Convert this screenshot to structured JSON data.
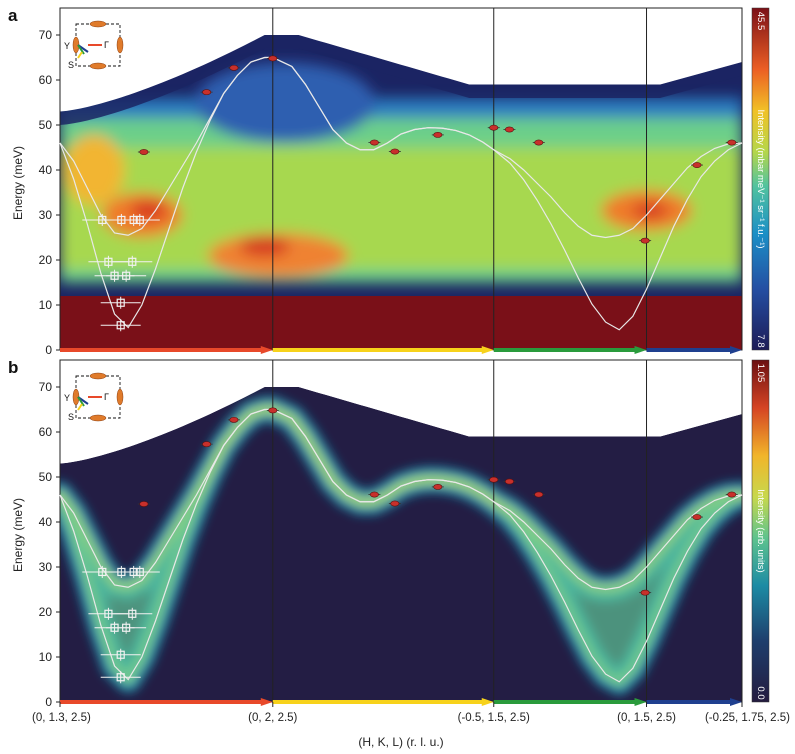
{
  "figure": {
    "xlabel": "(H, K, L) (r. l. u.)",
    "q_points": [
      "(0, 1.3, 2.5)",
      "(0, 2, 2.5)",
      "(-0.5, 1.5, 2.5)",
      "(0, 1.5, 2.5)",
      "(-0.25, 1.75, 2.5)"
    ],
    "path_colors": [
      "#e8492a",
      "#f7d21b",
      "#2a9b3c",
      "#1f3f8f"
    ]
  },
  "chart_data": [
    {
      "panel": "a",
      "type": "heatmap",
      "ylabel": "Energy (meV)",
      "xlabel": "(H, K, L) (r. l. u.)",
      "ylim": [
        0,
        76
      ],
      "yticks": [
        0,
        10,
        20,
        30,
        40,
        50,
        60,
        70
      ],
      "xlim": [
        0,
        1
      ],
      "xticks": [
        0,
        0.312,
        0.636,
        0.86,
        1
      ],
      "xticklabels": [
        "(0, 1.3, 2.5)",
        "(0, 2, 2.5)",
        "(-0.5, 1.5, 2.5)",
        "(0, 1.5, 2.5)",
        "(-0.25, 1.75, 2.5)"
      ],
      "colorbar": {
        "label": "Intensity (mbar meV⁻¹ sr⁻¹ f.u.⁻¹)",
        "min": 7.8,
        "max": 45.5,
        "min_label": "7.8",
        "max_label": "45.5"
      },
      "dispersion_curve": {
        "x": [
          0,
          0.02,
          0.04,
          0.06,
          0.08,
          0.1,
          0.12,
          0.14,
          0.16,
          0.18,
          0.2,
          0.22,
          0.24,
          0.26,
          0.28,
          0.3,
          0.312,
          0.34,
          0.36,
          0.38,
          0.4,
          0.42,
          0.44,
          0.46,
          0.48,
          0.5,
          0.52,
          0.54,
          0.56,
          0.58,
          0.6,
          0.62,
          0.636,
          0.66,
          0.68,
          0.7,
          0.72,
          0.74,
          0.76,
          0.78,
          0.8,
          0.82,
          0.84,
          0.86,
          0.88,
          0.9,
          0.92,
          0.94,
          0.96,
          0.98,
          1.0
        ],
        "lower_branch": [
          46,
          38,
          28,
          17,
          8,
          5,
          10,
          18,
          27,
          36,
          44,
          51,
          57,
          61,
          64,
          65,
          65,
          63,
          59,
          54,
          49,
          46,
          44.5,
          44.5,
          46,
          48,
          49,
          49.4,
          49.3,
          48.8,
          47.8,
          46.2,
          44.5,
          41.5,
          37.8,
          33.2,
          28,
          22.2,
          16,
          10.2,
          6.2,
          4.5,
          7.5,
          13.5,
          20.5,
          27.5,
          33.5,
          38.5,
          42,
          44.5,
          46
        ],
        "upper_branch": [
          46,
          42,
          36,
          30,
          26,
          25.5,
          27,
          31,
          36,
          41,
          46,
          51.5,
          57,
          61,
          64,
          65,
          65,
          63,
          59,
          54,
          49,
          46,
          44.5,
          44.5,
          46,
          48,
          49,
          49.4,
          49.3,
          48.8,
          47.8,
          46.2,
          44.5,
          42.5,
          40,
          37,
          34,
          30.5,
          27.5,
          25.5,
          25,
          25.5,
          27,
          30,
          33.5,
          37,
          40.5,
          43,
          44.8,
          45.8,
          46
        ]
      },
      "points": [
        {
          "x": 0.108,
          "y": 28.9,
          "style": "open-square"
        },
        {
          "x": 0.117,
          "y": 28.9,
          "style": "open-square"
        },
        {
          "x": 0.062,
          "y": 28.9,
          "style": "open-square"
        },
        {
          "x": 0.09,
          "y": 28.9,
          "style": "open-square"
        },
        {
          "x": 0.071,
          "y": 19.6,
          "style": "open-square"
        },
        {
          "x": 0.106,
          "y": 19.6,
          "style": "open-square"
        },
        {
          "x": 0.08,
          "y": 16.5,
          "style": "open-square"
        },
        {
          "x": 0.097,
          "y": 16.5,
          "style": "open-square"
        },
        {
          "x": 0.089,
          "y": 10.5,
          "style": "open-square"
        },
        {
          "x": 0.089,
          "y": 5.5,
          "style": "open-square"
        },
        {
          "x": 0.123,
          "y": 44.0,
          "style": "red-ellipse"
        },
        {
          "x": 0.215,
          "y": 57.3,
          "style": "red-ellipse"
        },
        {
          "x": 0.255,
          "y": 62.7,
          "style": "red-ellipse"
        },
        {
          "x": 0.312,
          "y": 64.8,
          "style": "red-ellipse"
        },
        {
          "x": 0.461,
          "y": 46.1,
          "style": "red-ellipse"
        },
        {
          "x": 0.491,
          "y": 44.1,
          "style": "red-ellipse"
        },
        {
          "x": 0.554,
          "y": 47.8,
          "style": "red-ellipse"
        },
        {
          "x": 0.636,
          "y": 49.4,
          "style": "red-ellipse"
        },
        {
          "x": 0.659,
          "y": 49.0,
          "style": "red-ellipse"
        },
        {
          "x": 0.702,
          "y": 46.1,
          "style": "red-ellipse"
        },
        {
          "x": 0.858,
          "y": 24.3,
          "style": "red-ellipse"
        },
        {
          "x": 0.934,
          "y": 41.1,
          "style": "red-ellipse"
        },
        {
          "x": 0.985,
          "y": 46.1,
          "style": "red-ellipse"
        }
      ]
    },
    {
      "panel": "b",
      "type": "heatmap",
      "ylabel": "Energy (meV)",
      "xlabel": "(H, K, L) (r. l. u.)",
      "ylim": [
        0,
        76
      ],
      "yticks": [
        0,
        10,
        20,
        30,
        40,
        50,
        60,
        70
      ],
      "xlim": [
        0,
        1
      ],
      "xticks": [
        0,
        0.312,
        0.636,
        0.86,
        1
      ],
      "xticklabels": [
        "(0, 1.3, 2.5)",
        "(0, 2, 2.5)",
        "(-0.5, 1.5, 2.5)",
        "(0, 1.5, 2.5)",
        "(-0.25, 1.75, 2.5)"
      ],
      "colorbar": {
        "label": "Intensity (arb. units)",
        "min": 0.0,
        "max": 1.05,
        "min_label": "0.0",
        "max_label": "1.05"
      },
      "points_same_as_panel_a": true
    }
  ],
  "labels": {
    "panel_a": "a",
    "panel_b": "b",
    "inset_y": "Y",
    "inset_s": "S",
    "inset_gamma": "Γ"
  }
}
